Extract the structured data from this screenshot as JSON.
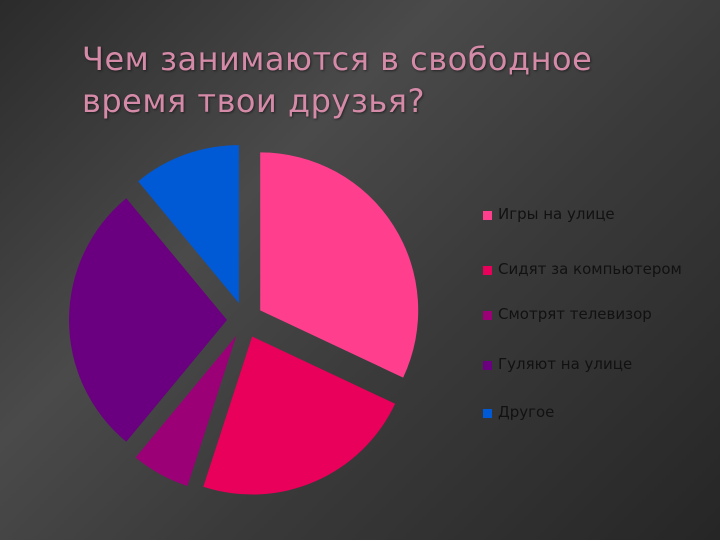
{
  "slide": {
    "title_line1": "Чем занимаются в свободное",
    "title_line2": "время твои друзья?"
  },
  "chart_data": {
    "type": "pie",
    "title": "Чем занимаются в свободное время твои друзья?",
    "exploded": true,
    "legend_position": "right",
    "slices": [
      {
        "label": "Игры на улице",
        "value": 32,
        "color": "#ff3e8e"
      },
      {
        "label": "Сидят за компьютером",
        "value": 23,
        "color": "#e8005a"
      },
      {
        "label": "Смотрят телевизор",
        "value": 6,
        "color": "#9b0077"
      },
      {
        "label": "Гуляют на улице",
        "value": 28,
        "color": "#6a0080"
      },
      {
        "label": "Другое",
        "value": 11,
        "color": "#005ad6"
      }
    ]
  }
}
